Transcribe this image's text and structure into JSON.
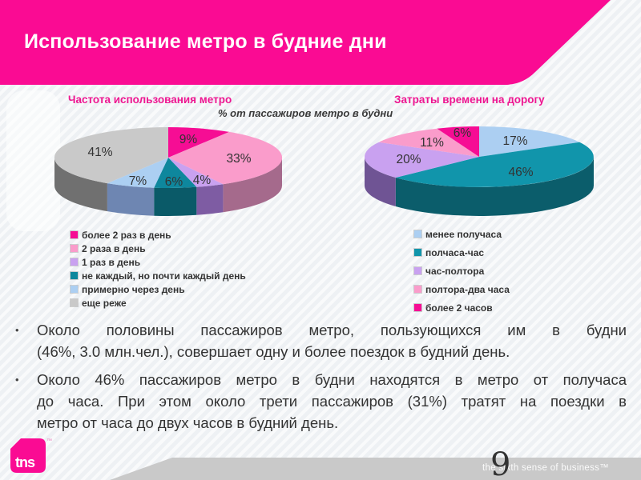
{
  "slide": {
    "title": "Использование метро в будние дни",
    "page_number": "9",
    "footer_tagline": "the sixth sense of business™",
    "logo_text": "tns",
    "logo_tm": "™",
    "bullet_char": "•"
  },
  "charts_subtitle": "% от пассажиров метро в будни",
  "colors": {
    "banner_magenta": "#fa0b93",
    "chart_title_magenta": "#ee1691",
    "footer_band_gray": "#c9c9c9",
    "text_dark": "#333333",
    "slide_background": "#eef1f4"
  },
  "chart_data": [
    {
      "type": "pie",
      "style": "3d",
      "title": "Частота использования метро",
      "subtitle": "% от пассажиров метро в будни",
      "start_angle_deg": -90,
      "direction": "clockwise",
      "legend_position": "bottom",
      "slices": [
        {
          "label": "более 2 раз в день",
          "value": 9,
          "color": "#f60d94",
          "side": "#a80a67"
        },
        {
          "label": "2 раза в день",
          "value": 33,
          "color": "#fa9ccb",
          "side": "#a56a8c"
        },
        {
          "label": "1 раз в день",
          "value": 4,
          "color": "#c9a1f0",
          "side": "#7e5ca3"
        },
        {
          "label": "не каждый, но почти каждый день",
          "value": 6,
          "color": "#0e879d",
          "side": "#0a5a68"
        },
        {
          "label": "примерно через день",
          "value": 7,
          "color": "#accff2",
          "side": "#6e86b2"
        },
        {
          "label": "еще реже",
          "value": 41,
          "color": "#c9c9c9",
          "side": "#707070"
        }
      ]
    },
    {
      "type": "pie",
      "style": "3d",
      "title": "Затраты времени на дорогу",
      "subtitle": "% от пассажиров метро в будни",
      "start_angle_deg": -90,
      "direction": "clockwise",
      "legend_position": "bottom",
      "slices": [
        {
          "label": "менее получаса",
          "value": 17,
          "color": "#accff2",
          "side": "#6e86b2"
        },
        {
          "label": "полчаса-час",
          "value": 46,
          "color": "#1195ab",
          "side": "#0b5d6b"
        },
        {
          "label": "час-полтора",
          "value": 20,
          "color": "#c9a1f0",
          "side": "#6f5494"
        },
        {
          "label": "полтора-два часа",
          "value": 11,
          "color": "#fa9ccb",
          "side": "#a56a8c"
        },
        {
          "label": "более 2 часов",
          "value": 6,
          "color": "#f60d94",
          "side": "#a80a67"
        }
      ]
    }
  ],
  "bullets": [
    {
      "lines": [
        "Около половины пассажиров метро, пользующихся им в будни",
        "(46%, 3.0 млн.чел.), совершает одну и более поездок в будний день."
      ]
    },
    {
      "lines": [
        "Около 46% пассажиров метро в будни находятся в метро от получаса",
        "до часа. При этом около трети пассажиров (31%) тратят на поездки в",
        "метро от часа до двух часов в будний день."
      ]
    }
  ]
}
